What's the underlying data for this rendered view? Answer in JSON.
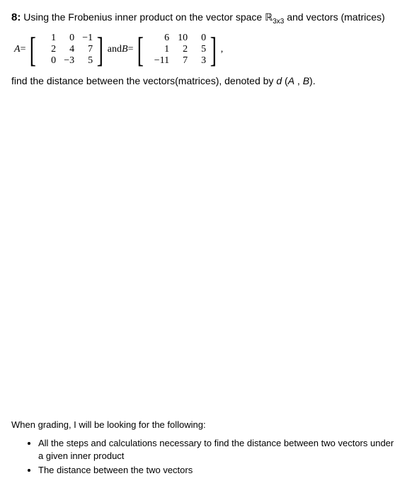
{
  "question": {
    "number": "8:",
    "prompt_before": "Using the Frobenius inner product on the vector space ",
    "space_symbol": "ℝ",
    "space_sub": "3x3",
    "prompt_after": " and vectors (matrices)",
    "eqA_lhs": "A",
    "equals": " = ",
    "and_text": " and ",
    "eqB_lhs": "B",
    "comma": ",",
    "matrixA": [
      [
        "1",
        "0",
        "−1"
      ],
      [
        "2",
        "4",
        "7"
      ],
      [
        "0",
        "−3",
        "5"
      ]
    ],
    "matrixB": [
      [
        "6",
        "10",
        "0"
      ],
      [
        "1",
        "2",
        "5"
      ],
      [
        "−11",
        "7",
        "3"
      ]
    ],
    "final_before": "find the distance between the vectors(matrices), denoted by ",
    "dist_sym": "d",
    "dist_args_open": " (",
    "dist_A": "A",
    "dist_sep": " , ",
    "dist_B": "B",
    "dist_args_close": ").",
    "bracket_left": "[",
    "bracket_right": "]"
  },
  "grading": {
    "intro": "When grading, I will be looking for the following:",
    "items": [
      "All the steps and calculations necessary to find the distance between two vectors under a given inner product",
      "The distance between the two vectors"
    ]
  }
}
